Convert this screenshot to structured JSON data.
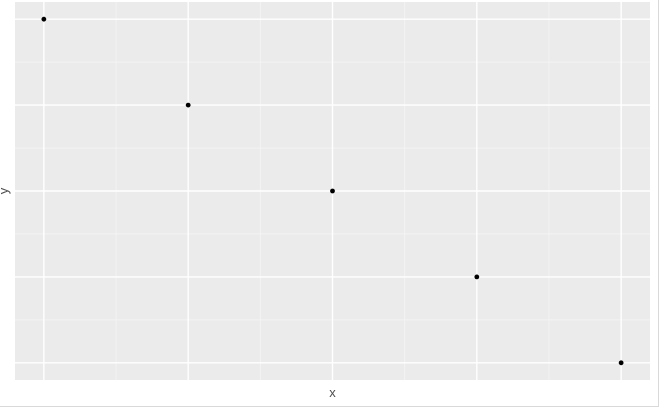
{
  "chart_data": {
    "type": "scatter",
    "title": "",
    "xlabel": "x",
    "ylabel": "y",
    "x": [
      1,
      2,
      3,
      4,
      5
    ],
    "y": [
      5,
      4,
      3,
      2,
      1
    ],
    "xlim": [
      0.8,
      5.2
    ],
    "ylim": [
      0.8,
      5.2
    ],
    "grid": true,
    "colors": {
      "panel": "#ebebeb",
      "grid_major": "#ffffff",
      "grid_minor": "#f5f5f5",
      "point": "#000000"
    }
  }
}
